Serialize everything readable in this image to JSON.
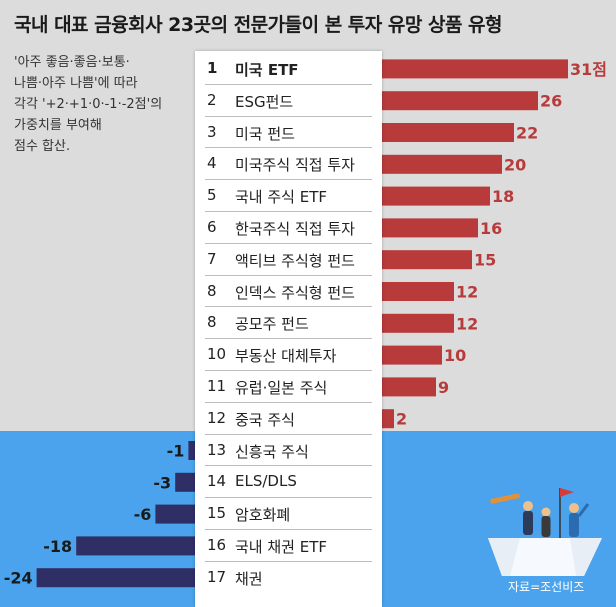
{
  "title": "국내 대표 금융회사 23곳의 전문가들이 본 투자 유망 상품 유형",
  "note": [
    "'아주 좋음·좋음·보통·",
    "나쁨·아주 나쁨'에 따라",
    "각각 '+2·+1·0·-1·-2점'의",
    "가중치를 부여해",
    "점수 합산."
  ],
  "source": "자료=조선비즈",
  "colors": {
    "positive": "#b83a3a",
    "negative": "#2f2f66",
    "top_bg": "#dcdcdc",
    "bottom_bg": "#4aa3ec"
  },
  "chart_data": {
    "type": "bar",
    "orientation": "horizontal",
    "categories": [
      "미국 ETF",
      "ESG펀드",
      "미국 펀드",
      "미국주식 직접 투자",
      "국내 주식 ETF",
      "한국주식 직접 투자",
      "액티브 주식형 펀드",
      "인덱스 주식형 펀드",
      "공모주 펀드",
      "부동산 대체투자",
      "유럽·일본 주식",
      "중국 주식",
      "신흥국 주식",
      "ELS/DLS",
      "암호화폐",
      "국내 채권 ETF",
      "채권"
    ],
    "ranks": [
      "1",
      "2",
      "3",
      "4",
      "5",
      "6",
      "7",
      "8",
      "8",
      "10",
      "11",
      "12",
      "13",
      "14",
      "15",
      "16",
      "17"
    ],
    "values": [
      31,
      26,
      22,
      20,
      18,
      16,
      15,
      12,
      12,
      10,
      9,
      2,
      -1,
      -3,
      -6,
      -18,
      -24
    ],
    "value_labels": [
      "31점",
      "26",
      "22",
      "20",
      "18",
      "16",
      "15",
      "12",
      "12",
      "10",
      "9",
      "2",
      "-1",
      "-3",
      "-6",
      "-18",
      "-24"
    ]
  }
}
